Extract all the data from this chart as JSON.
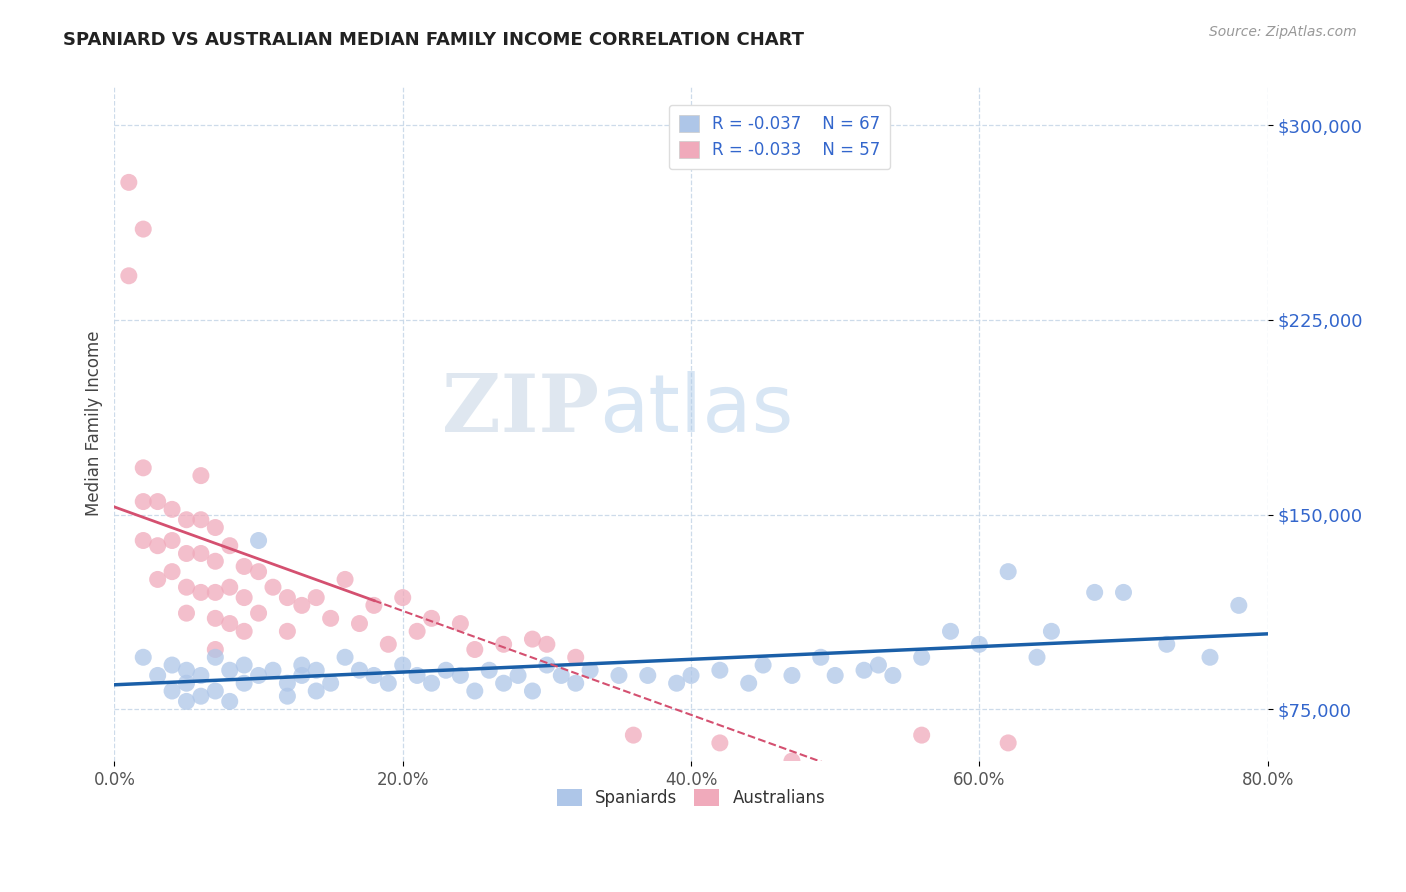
{
  "title": "SPANIARD VS AUSTRALIAN MEDIAN FAMILY INCOME CORRELATION CHART",
  "source_text": "Source: ZipAtlas.com",
  "ylabel": "Median Family Income",
  "xlim": [
    0.0,
    0.8
  ],
  "ylim": [
    55000,
    315000
  ],
  "yticks": [
    75000,
    150000,
    225000,
    300000
  ],
  "ytick_labels": [
    "$75,000",
    "$150,000",
    "$225,000",
    "$300,000"
  ],
  "xticks": [
    0.0,
    0.2,
    0.4,
    0.6,
    0.8
  ],
  "xtick_labels": [
    "0.0%",
    "20.0%",
    "40.0%",
    "60.0%",
    "80.0%"
  ],
  "watermark_zip": "ZIP",
  "watermark_atlas": "atlas",
  "background_color": "#ffffff",
  "grid_color": "#c8d8e8",
  "spaniards_color": "#aec6e8",
  "australians_color": "#f0aabb",
  "spaniards_line_color": "#1a5fa8",
  "australians_line_color": "#d45070",
  "legend_r_spaniards": "R = -0.037",
  "legend_n_spaniards": "N = 67",
  "legend_r_australians": "R = -0.033",
  "legend_n_australians": "N = 57",
  "spaniards_x": [
    0.02,
    0.03,
    0.04,
    0.04,
    0.05,
    0.05,
    0.05,
    0.06,
    0.06,
    0.07,
    0.07,
    0.08,
    0.08,
    0.09,
    0.09,
    0.1,
    0.1,
    0.11,
    0.12,
    0.12,
    0.13,
    0.13,
    0.14,
    0.14,
    0.15,
    0.16,
    0.17,
    0.18,
    0.19,
    0.2,
    0.21,
    0.22,
    0.23,
    0.24,
    0.25,
    0.26,
    0.27,
    0.28,
    0.29,
    0.3,
    0.31,
    0.32,
    0.33,
    0.35,
    0.37,
    0.39,
    0.4,
    0.42,
    0.44,
    0.45,
    0.47,
    0.49,
    0.5,
    0.52,
    0.53,
    0.54,
    0.56,
    0.58,
    0.6,
    0.62,
    0.64,
    0.65,
    0.68,
    0.7,
    0.73,
    0.76,
    0.78
  ],
  "spaniards_y": [
    95000,
    88000,
    92000,
    82000,
    85000,
    90000,
    78000,
    88000,
    80000,
    95000,
    82000,
    90000,
    78000,
    92000,
    85000,
    140000,
    88000,
    90000,
    85000,
    80000,
    92000,
    88000,
    90000,
    82000,
    85000,
    95000,
    90000,
    88000,
    85000,
    92000,
    88000,
    85000,
    90000,
    88000,
    82000,
    90000,
    85000,
    88000,
    82000,
    92000,
    88000,
    85000,
    90000,
    88000,
    88000,
    85000,
    88000,
    90000,
    85000,
    92000,
    88000,
    95000,
    88000,
    90000,
    92000,
    88000,
    95000,
    105000,
    100000,
    128000,
    95000,
    105000,
    120000,
    120000,
    100000,
    95000,
    115000
  ],
  "australians_x": [
    0.01,
    0.01,
    0.02,
    0.02,
    0.02,
    0.02,
    0.03,
    0.03,
    0.03,
    0.04,
    0.04,
    0.04,
    0.05,
    0.05,
    0.05,
    0.05,
    0.06,
    0.06,
    0.06,
    0.06,
    0.07,
    0.07,
    0.07,
    0.07,
    0.07,
    0.08,
    0.08,
    0.08,
    0.09,
    0.09,
    0.09,
    0.1,
    0.1,
    0.11,
    0.12,
    0.12,
    0.13,
    0.14,
    0.15,
    0.16,
    0.17,
    0.18,
    0.19,
    0.2,
    0.21,
    0.22,
    0.24,
    0.25,
    0.27,
    0.29,
    0.3,
    0.32,
    0.36,
    0.42,
    0.47,
    0.56,
    0.62
  ],
  "australians_y": [
    278000,
    242000,
    260000,
    168000,
    155000,
    140000,
    155000,
    138000,
    125000,
    152000,
    140000,
    128000,
    148000,
    135000,
    122000,
    112000,
    165000,
    148000,
    135000,
    120000,
    145000,
    132000,
    120000,
    110000,
    98000,
    138000,
    122000,
    108000,
    130000,
    118000,
    105000,
    128000,
    112000,
    122000,
    118000,
    105000,
    115000,
    118000,
    110000,
    125000,
    108000,
    115000,
    100000,
    118000,
    105000,
    110000,
    108000,
    98000,
    100000,
    102000,
    100000,
    95000,
    65000,
    62000,
    55000,
    65000,
    62000
  ]
}
